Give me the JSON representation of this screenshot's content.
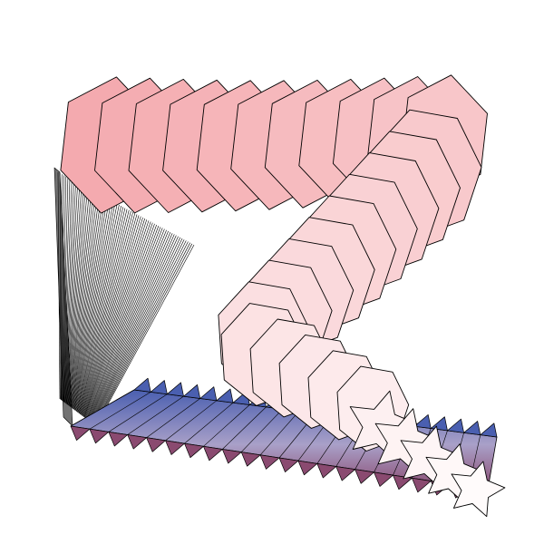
{
  "artwork": {
    "description_free": true,
    "palette": {
      "background": "#ffffff",
      "stroke": "#000000",
      "pink_start": "#f4aaaf",
      "pink_end": "#fffbfb",
      "ribbon_blue": "#4a5fb0",
      "ribbon_plum": "#8a4a70",
      "ribbon_mauve": "#a9a0c8"
    },
    "shapes": {
      "hexagon_sheets": 11,
      "septagon_sheets": 9,
      "star_sheets": 5,
      "ribbon_teeth": 22,
      "column_lines": 70
    }
  }
}
